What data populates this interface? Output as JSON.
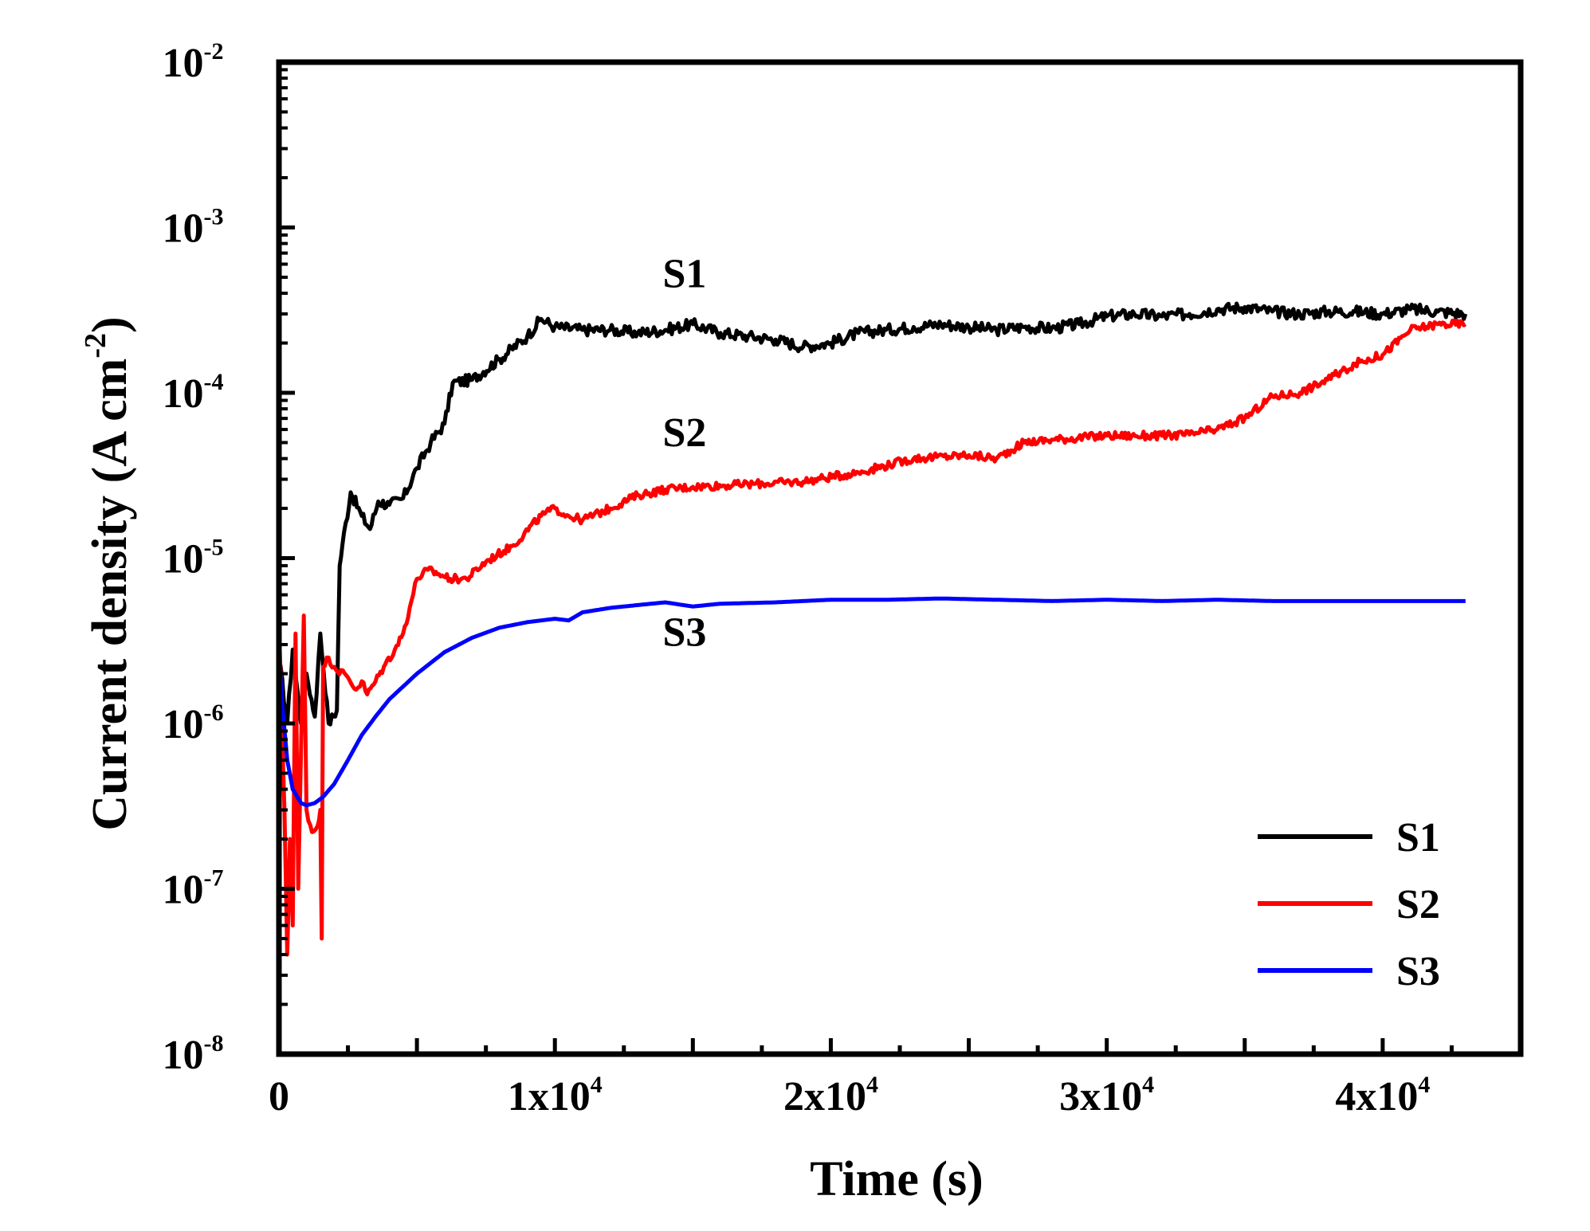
{
  "chart_data": {
    "type": "line",
    "title": "",
    "xlabel": "Time (s)",
    "ylabel": "Current density (A cm",
    "ylabel_sup": "-2",
    "ylabel_close": ")",
    "xlim": [
      0,
      45000
    ],
    "ylim": [
      1e-08,
      0.01
    ],
    "yscale": "log",
    "x_ticks": [
      {
        "value": 0,
        "base": "0",
        "exp": ""
      },
      {
        "value": 10000,
        "base": "1x10",
        "exp": "4"
      },
      {
        "value": 20000,
        "base": "2x10",
        "exp": "4"
      },
      {
        "value": 30000,
        "base": "3x10",
        "exp": "4"
      },
      {
        "value": 40000,
        "base": "4x10",
        "exp": "4"
      }
    ],
    "y_ticks": [
      {
        "value": 0.01,
        "base": "10",
        "exp": "-2"
      },
      {
        "value": 0.001,
        "base": "10",
        "exp": "-3"
      },
      {
        "value": 0.0001,
        "base": "10",
        "exp": "-4"
      },
      {
        "value": 1e-05,
        "base": "10",
        "exp": "-5"
      },
      {
        "value": 1e-06,
        "base": "10",
        "exp": "-6"
      },
      {
        "value": 1e-07,
        "base": "10",
        "exp": "-7"
      },
      {
        "value": 1e-08,
        "base": "10",
        "exp": "-8"
      }
    ],
    "legend_position": "bottom-right",
    "series": [
      {
        "name": "S1",
        "color": "#000000",
        "noise": 0.035,
        "x": [
          0,
          300,
          500,
          800,
          1000,
          1300,
          1500,
          1800,
          2100,
          2200,
          2300,
          2600,
          3000,
          3300,
          3600,
          4000,
          4500,
          5000,
          5500,
          6000,
          6300,
          7000,
          8000,
          9000,
          9500,
          10000,
          11000,
          12000,
          13000,
          14000,
          15000,
          16000,
          17000,
          18000,
          19000,
          20000,
          21000,
          22000,
          23000,
          24000,
          25000,
          26000,
          27000,
          28000,
          29000,
          30000,
          31000,
          32000,
          33000,
          34000,
          35000,
          36000,
          37000,
          38000,
          39000,
          40000,
          41000,
          42000,
          43000
        ],
        "y": [
          2.5e-06,
          1e-06,
          2.8e-06,
          1e-06,
          2e-06,
          1.1e-06,
          3.5e-06,
          1e-06,
          1.2e-06,
          9e-06,
          1.2e-05,
          2.5e-05,
          1.8e-05,
          1.5e-05,
          2.2e-05,
          2.1e-05,
          2.3e-05,
          3.5e-05,
          5e-05,
          6.5e-05,
          0.000115,
          0.00012,
          0.00016,
          0.00022,
          0.00028,
          0.00025,
          0.00024,
          0.00024,
          0.00023,
          0.00024,
          0.00026,
          0.00023,
          0.00022,
          0.00021,
          0.00019,
          0.0002,
          0.00023,
          0.00024,
          0.00025,
          0.00026,
          0.00025,
          0.00024,
          0.00025,
          0.000245,
          0.00026,
          0.00029,
          0.0003,
          0.00029,
          0.0003,
          0.00032,
          0.00033,
          0.00031,
          0.0003,
          0.00031,
          0.00031,
          0.0003,
          0.00032,
          0.00031,
          0.0003
        ]
      },
      {
        "name": "S2",
        "color": "#ff0000",
        "noise": 0.025,
        "x": [
          0,
          200,
          300,
          400,
          500,
          600,
          700,
          900,
          1000,
          1200,
          1400,
          1500,
          1550,
          1600,
          1800,
          2000,
          2500,
          2800,
          3000,
          3200,
          3500,
          3800,
          4200,
          4500,
          4800,
          5000,
          5400,
          5800,
          6200,
          6800,
          7500,
          8500,
          9500,
          10000,
          10500,
          11000,
          12000,
          13000,
          14000,
          15000,
          17000,
          19000,
          21000,
          23000,
          25000,
          26000,
          27000,
          28000,
          30000,
          32000,
          33000,
          34000,
          35000,
          36000,
          37000,
          38000,
          39000,
          40000,
          41000,
          42000,
          43000
        ],
        "y": [
          4e-06,
          3e-07,
          4e-08,
          2e-07,
          6e-08,
          3.5e-06,
          1e-07,
          4.5e-06,
          3e-07,
          2.2e-07,
          2.4e-07,
          3e-07,
          5e-08,
          2.2e-06,
          2.5e-06,
          2.2e-06,
          1.9e-06,
          1.6e-06,
          1.8e-06,
          1.5e-06,
          1.8e-06,
          2.2e-06,
          2.8e-06,
          3.5e-06,
          5.5e-06,
          7.5e-06,
          8.5e-06,
          8e-06,
          7.5e-06,
          7.5e-06,
          9.5e-06,
          1.2e-05,
          1.8e-05,
          2e-05,
          1.8e-05,
          1.7e-05,
          2e-05,
          2.4e-05,
          2.6e-05,
          2.7e-05,
          2.8e-05,
          2.9e-05,
          3.3e-05,
          4e-05,
          4.2e-05,
          4e-05,
          5e-05,
          5.2e-05,
          5.5e-05,
          5.5e-05,
          5.6e-05,
          6e-05,
          7e-05,
          9.5e-05,
          0.0001,
          0.00012,
          0.00015,
          0.00017,
          0.00024,
          0.00026,
          0.00026
        ]
      },
      {
        "name": "S3",
        "color": "#0000ff",
        "noise": 0,
        "x": [
          0,
          100,
          300,
          500,
          800,
          1000,
          1300,
          1600,
          2000,
          2500,
          3000,
          3500,
          4000,
          5000,
          6000,
          7000,
          8000,
          9000,
          10000,
          10500,
          11000,
          12000,
          13000,
          14000,
          15000,
          16000,
          18000,
          20000,
          22000,
          24000,
          26000,
          28000,
          30000,
          32000,
          34000,
          36000,
          38000,
          40000,
          43000
        ],
        "y": [
          2.8e-06,
          1.4e-06,
          6e-07,
          4e-07,
          3.3e-07,
          3.2e-07,
          3.3e-07,
          3.6e-07,
          4.3e-07,
          6e-07,
          8.5e-07,
          1.1e-06,
          1.4e-06,
          2e-06,
          2.7e-06,
          3.3e-06,
          3.8e-06,
          4.1e-06,
          4.3e-06,
          4.2e-06,
          4.7e-06,
          5e-06,
          5.2e-06,
          5.4e-06,
          5.1e-06,
          5.3e-06,
          5.4e-06,
          5.6e-06,
          5.6e-06,
          5.7e-06,
          5.6e-06,
          5.5e-06,
          5.6e-06,
          5.5e-06,
          5.6e-06,
          5.5e-06,
          5.5e-06,
          5.5e-06,
          5.5e-06
        ]
      }
    ],
    "annotations": [
      {
        "text": "S1",
        "x": 14700,
        "y": 0.00053
      },
      {
        "text": "S2",
        "x": 14700,
        "y": 5.8e-05
      },
      {
        "text": "S3",
        "x": 14700,
        "y": 3.6e-06
      }
    ]
  }
}
